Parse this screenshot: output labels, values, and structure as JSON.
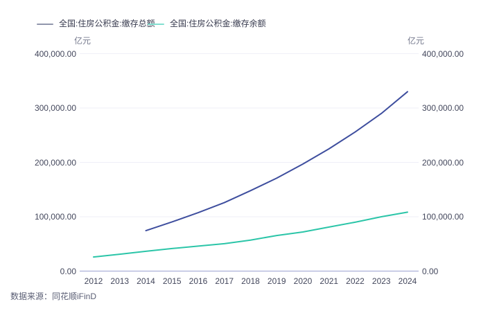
{
  "legend": {
    "items": [
      {
        "label": "全国:住房公积金:缴存总额",
        "marker_color": "#9196ac"
      },
      {
        "label": "全国:住房公积金:缴存余额",
        "marker_color": "#82dfd0"
      }
    ]
  },
  "axes": {
    "left_unit": "亿元",
    "right_unit": "亿元",
    "y_ticks": [
      "0.00",
      "100,000.00",
      "200,000.00",
      "300,000.00",
      "400,000.00"
    ],
    "x_ticks": [
      "2012",
      "2013",
      "2014",
      "2015",
      "2016",
      "2017",
      "2018",
      "2019",
      "2020",
      "2021",
      "2022",
      "2023",
      "2024"
    ]
  },
  "colors": {
    "gridline": "#efeff7",
    "axis_line": "#acb0d8",
    "series_total": "#3e4e9e",
    "series_balance": "#2bc5a8"
  },
  "footer": {
    "source": "数据来源：同花顺iFinD"
  },
  "chart_data": {
    "type": "line",
    "title": "",
    "xlabel": "",
    "ylabel": "亿元",
    "ylabel_right": "亿元",
    "ylim": [
      0,
      400000
    ],
    "grid": true,
    "legend_position": "top",
    "categories": [
      2012,
      2013,
      2014,
      2015,
      2016,
      2017,
      2018,
      2019,
      2020,
      2021,
      2022,
      2023,
      2024
    ],
    "series": [
      {
        "name": "全国:住房公积金:缴存总额",
        "color": "#3e4e9e",
        "values": [
          null,
          null,
          74500,
          90500,
          107500,
          126000,
          148000,
          171000,
          197000,
          225000,
          256000,
          290000,
          330000
        ]
      },
      {
        "name": "全国:住房公积金:缴存余额",
        "color": "#2bc5a8",
        "values": [
          26000,
          31000,
          36500,
          41500,
          46000,
          50500,
          57000,
          65500,
          72000,
          81000,
          90000,
          100000,
          108500
        ]
      }
    ]
  }
}
